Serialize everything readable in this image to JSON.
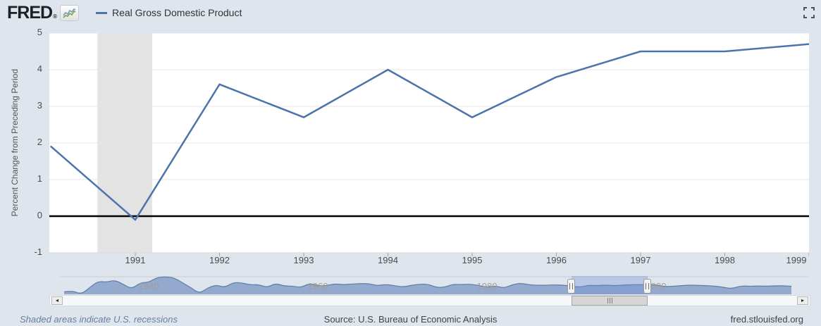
{
  "header": {
    "logo": "FRED",
    "registered_mark": "®",
    "legend_label": "Real Gross Domestic Product",
    "legend_color": "#4a74ab"
  },
  "chart_data": [
    {
      "role": "main",
      "type": "line",
      "title": "Real Gross Domestic Product",
      "ylabel": "Percent Change from Preceding Period",
      "xlabel": "",
      "xlim": [
        1990,
        1999
      ],
      "ylim": [
        -1,
        5
      ],
      "yticks": [
        5,
        4,
        3,
        2,
        1,
        0,
        -1
      ],
      "xticks": [
        1991,
        1992,
        1993,
        1994,
        1995,
        1996,
        1997,
        1998,
        1999
      ],
      "grid": true,
      "zero_line": true,
      "legend_position": "top-left-header",
      "series": [
        {
          "name": "Real Gross Domestic Product",
          "color": "#4a74ab",
          "x": [
            1990,
            1991,
            1992,
            1993,
            1994,
            1995,
            1996,
            1997,
            1998,
            1999
          ],
          "values": [
            1.9,
            -0.1,
            3.6,
            2.7,
            4.0,
            2.7,
            3.8,
            4.5,
            4.5,
            4.7
          ]
        }
      ],
      "recession_bands": [
        {
          "start": 1990.55,
          "end": 1991.2
        }
      ],
      "recession_color": "#e3e3e3",
      "background": "#ffffff",
      "gridline_color": "#e6e6e6"
    },
    {
      "role": "navigator",
      "type": "area",
      "x_start_year": 1930,
      "values": [
        -8.5,
        -6.4,
        -12.9,
        -1.2,
        10.8,
        8.9,
        12.9,
        5.1,
        -3.3,
        8.0,
        8.8,
        17.7,
        18.9,
        17.0,
        8.0,
        -1.0,
        -11.6,
        -1.1,
        4.1,
        -0.6,
        8.7,
        8.0,
        4.1,
        4.7,
        -0.6,
        7.1,
        2.1,
        2.1,
        -0.7,
        6.9,
        2.6,
        2.6,
        6.1,
        4.4,
        5.8,
        6.5,
        6.6,
        2.7,
        4.9,
        3.1,
        0.2,
        3.3,
        5.3,
        5.6,
        -0.5,
        -0.2,
        5.4,
        4.6,
        5.5,
        3.2,
        -0.3,
        2.5,
        -1.8,
        4.6,
        7.2,
        4.2,
        3.5,
        3.5,
        4.2,
        3.7,
        1.9,
        -0.1,
        3.6,
        2.7,
        4.0,
        2.7,
        3.8,
        4.5,
        4.5,
        4.7,
        4.1,
        1.0,
        1.7,
        2.9,
        3.8,
        3.3,
        2.7,
        1.8,
        -0.3,
        -2.8,
        2.5,
        1.6,
        2.2,
        1.7,
        2.4,
        2.6,
        1.6
      ],
      "ylim": [
        -13,
        19
      ],
      "decade_labels": [
        "1940",
        "1960",
        "1980",
        "2000"
      ],
      "selection": {
        "start": 1990,
        "end": 1999
      },
      "area_fill": "#93a9ce",
      "area_stroke": "#5a7da9",
      "selection_fill": "rgba(105,140,205,0.33)"
    }
  ],
  "icons": {
    "fullscreen": "fullscreen-corners",
    "fred_sparkline": "sparkline-chart",
    "scroll_left_arrow": "◂",
    "scroll_right_arrow": "▸",
    "handle_grip": "||",
    "thumb_grip": "|||"
  },
  "footer": {
    "recession_note": "Shaded areas indicate U.S. recessions",
    "source": "Source: U.S. Bureau of Economic Analysis",
    "site": "fred.stlouisfed.org"
  }
}
